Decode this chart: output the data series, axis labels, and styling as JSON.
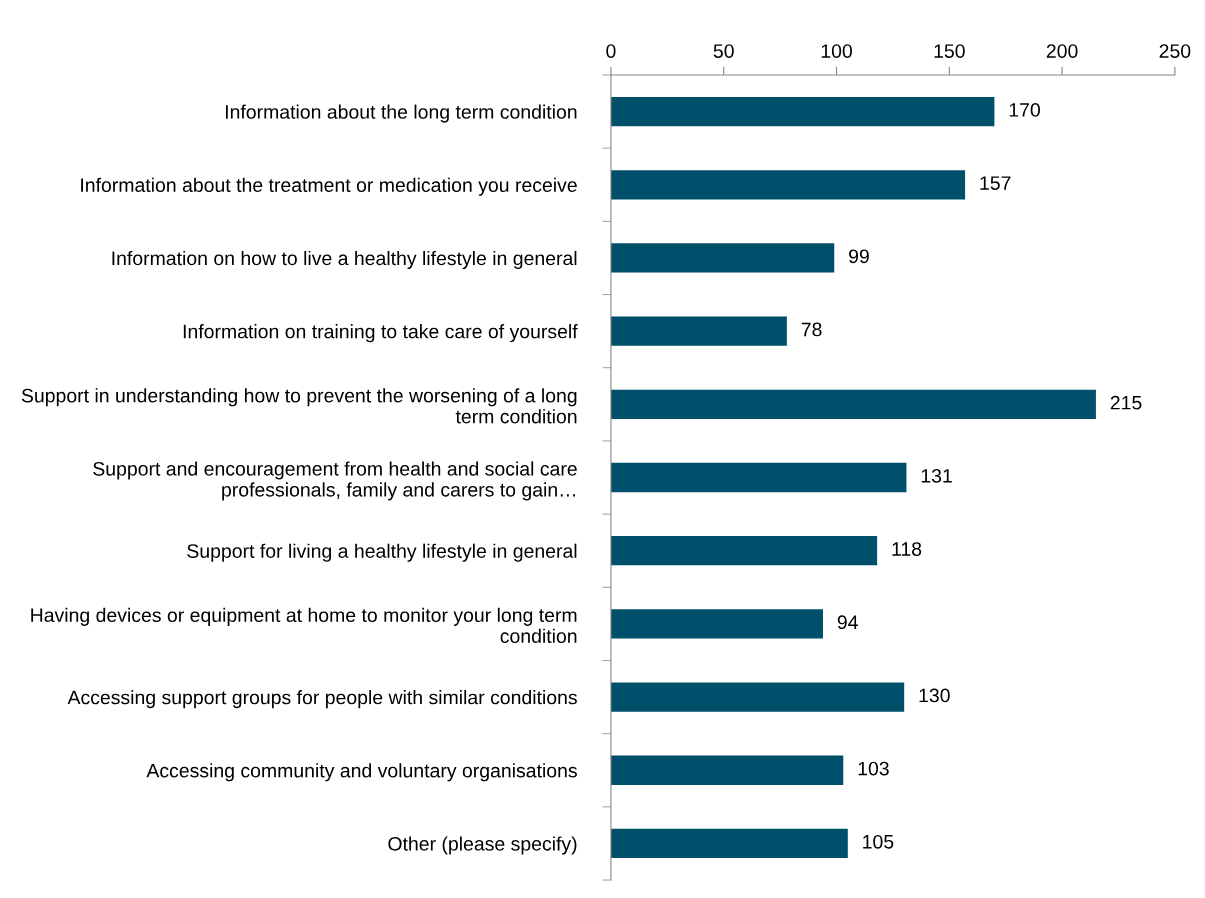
{
  "chart_data": {
    "type": "bar",
    "orientation": "horizontal",
    "categories": [
      "Information about the long term condition",
      "Information about the treatment or medication you receive",
      "Information on how to live a healthy lifestyle in general",
      "Information on training to take care of yourself",
      "Support in understanding how to prevent the worsening of a long term condition",
      "Support and encouragement from health and social care professionals, family and carers to gain…",
      "Support for living a healthy lifestyle in general",
      "Having devices or equipment at home to monitor your long term condition",
      "Accessing support groups for people with similar conditions",
      "Accessing community and voluntary organisations",
      "Other (please specify)"
    ],
    "values": [
      170,
      157,
      99,
      78,
      215,
      131,
      118,
      94,
      130,
      103,
      105
    ],
    "color": "#004f6b",
    "xlim": [
      0,
      250
    ],
    "xticks": [
      0,
      50,
      100,
      150,
      200,
      250
    ],
    "data_labels": true,
    "grid": false,
    "legend": false
  }
}
